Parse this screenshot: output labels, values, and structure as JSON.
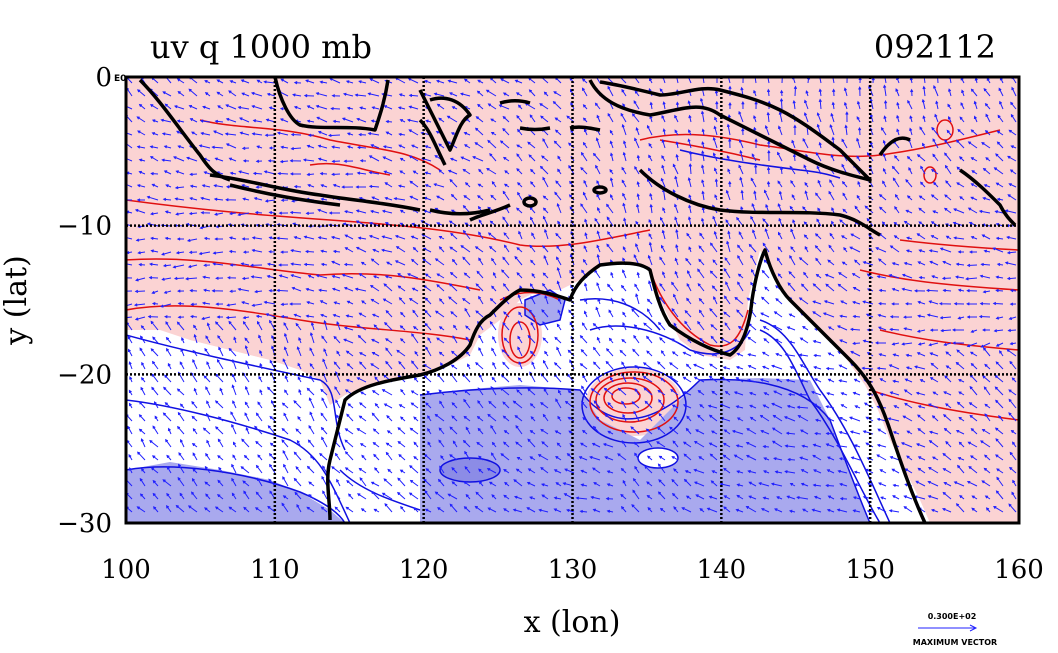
{
  "header": {
    "title": "uv q 1000 mb",
    "date_code": "092112"
  },
  "axes": {
    "xlabel": "x (lon)",
    "ylabel": "y (lat)",
    "x_ticks": [
      "100",
      "110",
      "120",
      "130",
      "140",
      "150",
      "160"
    ],
    "y_ticks": [
      "0",
      "−10",
      "−20",
      "−30"
    ],
    "y_tick_suffix": "E0",
    "xlim": [
      100,
      160
    ],
    "ylim": [
      -30,
      0
    ],
    "grid": true
  },
  "legend": {
    "vector_scale": "0.300E+02",
    "vector_label": "MAXIMUM VECTOR"
  },
  "colors": {
    "moist_fill": "#fbd3d3",
    "dry_fill": "#a9a9ee",
    "moist_contour": "#e01010",
    "dry_contour": "#1010e0",
    "coastline": "#000000",
    "wind_vector": "#2020ff"
  },
  "chart_data": {
    "type": "map",
    "field": "specific humidity (q) with wind vectors (u,v)",
    "level": "1000 mb",
    "x": [
      100,
      110,
      120,
      130,
      140,
      150,
      160
    ],
    "y": [
      0,
      -10,
      -20,
      -30
    ],
    "regions": [
      {
        "name": "moist",
        "color": "#fbd3d3"
      },
      {
        "name": "dry",
        "color": "#a9a9ee"
      }
    ]
  }
}
